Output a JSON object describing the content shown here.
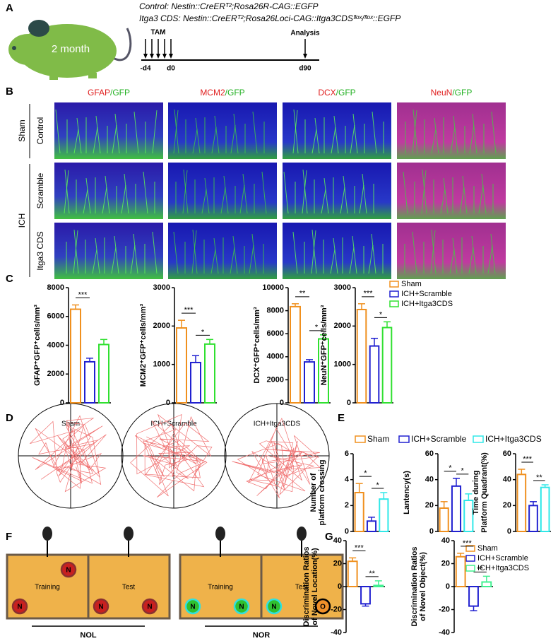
{
  "panel_labels": [
    "A",
    "B",
    "C",
    "D",
    "E",
    "F",
    "G"
  ],
  "panel_a": {
    "genotypes": [
      "Control: Nestin::CreERᵀ²;Rosa26R-CAG::EGFP",
      "Itga3 CDS: Nestin::CreERᵀ²;Rosa26Loci-CAG::Itga3CDSᶠˡᵒˣ/ᶠˡᵒˣ::EGFP"
    ],
    "age": "2 month",
    "tam": "TAM",
    "analysis": "Analysis",
    "days": [
      "-d4",
      "d0",
      "d90"
    ]
  },
  "panel_b": {
    "columns": [
      [
        "GFAP",
        "/GFP"
      ],
      [
        "MCM2",
        "/GFP"
      ],
      [
        "DCX",
        "/GFP"
      ],
      [
        "NeuN",
        "/GFP"
      ]
    ],
    "groups": [
      "Sham",
      "ICH"
    ],
    "rows": [
      "Control",
      "Scramble",
      "Itga3 CDS"
    ]
  },
  "panel_d": {
    "titles": [
      "Sham",
      "ICH+Scramble",
      "ICH+Itga3CDS"
    ]
  },
  "panel_f": {
    "boxes": [
      {
        "title": "Training",
        "objects": [
          "N",
          "N"
        ]
      },
      {
        "title": "Test",
        "objects": [
          "N",
          "N"
        ]
      },
      {
        "title": "Training",
        "objects": [
          "N",
          "N"
        ]
      },
      {
        "title": "Test",
        "objects": [
          "N",
          "O"
        ]
      }
    ],
    "groups": [
      "NOL",
      "NOR"
    ]
  },
  "legends": [
    {
      "names": [
        "Sham",
        "ICH+Scramble",
        "ICH+Itga3CDS"
      ],
      "colors": [
        "#f0901e",
        "#2020d0",
        "#30e030"
      ]
    },
    {
      "names": [
        "Sham",
        "ICH+Scramble",
        "ICH+Itga3CDS"
      ],
      "colors": [
        "#f0901e",
        "#2020d0",
        "#30e8e8"
      ]
    },
    {
      "names": [
        "Sham",
        "ICH+Scramble",
        "ICH+Itga3CDS"
      ],
      "colors": [
        "#f0901e",
        "#2020d0",
        "#40f090"
      ]
    }
  ],
  "chart_data": [
    {
      "type": "bar",
      "ylabel": [
        "GFAP⁺GFP⁺cells/mm³"
      ],
      "values": [
        6500,
        2850,
        4050
      ],
      "errors": [
        300,
        250,
        350
      ],
      "colors": [
        "#f0901e",
        "#2020d0",
        "#30e030"
      ],
      "ylim": [
        0,
        8000
      ],
      "yticks": [
        0,
        2000,
        4000,
        6000,
        8000
      ],
      "annotations": [
        "***"
      ]
    },
    {
      "type": "bar",
      "ylabel": [
        "MCM2⁺GFP⁺cells/mm³"
      ],
      "values": [
        1950,
        1050,
        1530
      ],
      "errors": [
        200,
        180,
        120
      ],
      "colors": [
        "#f0901e",
        "#2020d0",
        "#30e030"
      ],
      "ylim": [
        0,
        3000
      ],
      "yticks": [
        0,
        1000,
        2000,
        3000
      ],
      "annotations": [
        "***",
        "*"
      ]
    },
    {
      "type": "bar",
      "ylabel": [
        "DCX⁺GFP⁺cells/mm³"
      ],
      "values": [
        8350,
        3550,
        5550
      ],
      "errors": [
        250,
        200,
        350
      ],
      "colors": [
        "#f0901e",
        "#2020d0",
        "#30e030"
      ],
      "ylim": [
        0,
        10000
      ],
      "yticks": [
        0,
        2000,
        4000,
        6000,
        8000,
        10000
      ],
      "annotations": [
        "**",
        "*"
      ]
    },
    {
      "type": "bar",
      "ylabel": [
        "NeuN⁺GFP⁺cells/mm³"
      ],
      "values": [
        2430,
        1480,
        1960
      ],
      "errors": [
        150,
        200,
        150
      ],
      "colors": [
        "#f0901e",
        "#2020d0",
        "#30e030"
      ],
      "ylim": [
        0,
        3000
      ],
      "yticks": [
        0,
        1000,
        2000,
        3000
      ],
      "annotations": [
        "***",
        "*"
      ]
    },
    {
      "type": "bar",
      "ylabel": [
        "Number of",
        "platform crossing"
      ],
      "values": [
        3.0,
        0.8,
        2.5
      ],
      "errors": [
        0.7,
        0.3,
        0.5
      ],
      "colors": [
        "#f0901e",
        "#2020d0",
        "#30e8e8"
      ],
      "ylim": [
        0,
        6
      ],
      "yticks": [
        0,
        2,
        4,
        6
      ],
      "annotations": [
        "*",
        "*"
      ]
    },
    {
      "type": "bar",
      "ylabel": [
        "Lantency(s)"
      ],
      "values": [
        18,
        35,
        24
      ],
      "errors": [
        5,
        6,
        5
      ],
      "colors": [
        "#f0901e",
        "#2020d0",
        "#30e8e8"
      ],
      "ylim": [
        0,
        60
      ],
      "yticks": [
        0,
        20,
        40,
        60
      ],
      "annotations": [
        "*",
        "*"
      ]
    },
    {
      "type": "bar",
      "ylabel": [
        "Time  during",
        "Platform Quadrant(%)"
      ],
      "values": [
        44,
        20,
        34
      ],
      "errors": [
        4,
        3,
        2
      ],
      "colors": [
        "#f0901e",
        "#2020d0",
        "#30e8e8"
      ],
      "ylim": [
        0,
        60
      ],
      "yticks": [
        0,
        20,
        40,
        60
      ],
      "annotations": [
        "***",
        "**"
      ]
    },
    {
      "type": "bar",
      "ylabel": [
        "Discrimination Ratios",
        "of Novel Location(%)"
      ],
      "values": [
        22,
        -15,
        1
      ],
      "errors": [
        3,
        2,
        4
      ],
      "colors": [
        "#f0901e",
        "#2020d0",
        "#40f090"
      ],
      "ylim": [
        -40,
        40
      ],
      "yticks": [
        -40,
        -20,
        0,
        20,
        40
      ],
      "annotations": [
        "***",
        "**"
      ]
    },
    {
      "type": "bar",
      "ylabel": [
        "Discrimination Ratios",
        "of Novel Object(%)"
      ],
      "values": [
        26,
        -17,
        4
      ],
      "errors": [
        3,
        4,
        5
      ],
      "colors": [
        "#f0901e",
        "#2020d0",
        "#40f090"
      ],
      "ylim": [
        -40,
        40
      ],
      "yticks": [
        -40,
        -20,
        0,
        20,
        40
      ],
      "annotations": [
        "***",
        "**"
      ]
    }
  ]
}
